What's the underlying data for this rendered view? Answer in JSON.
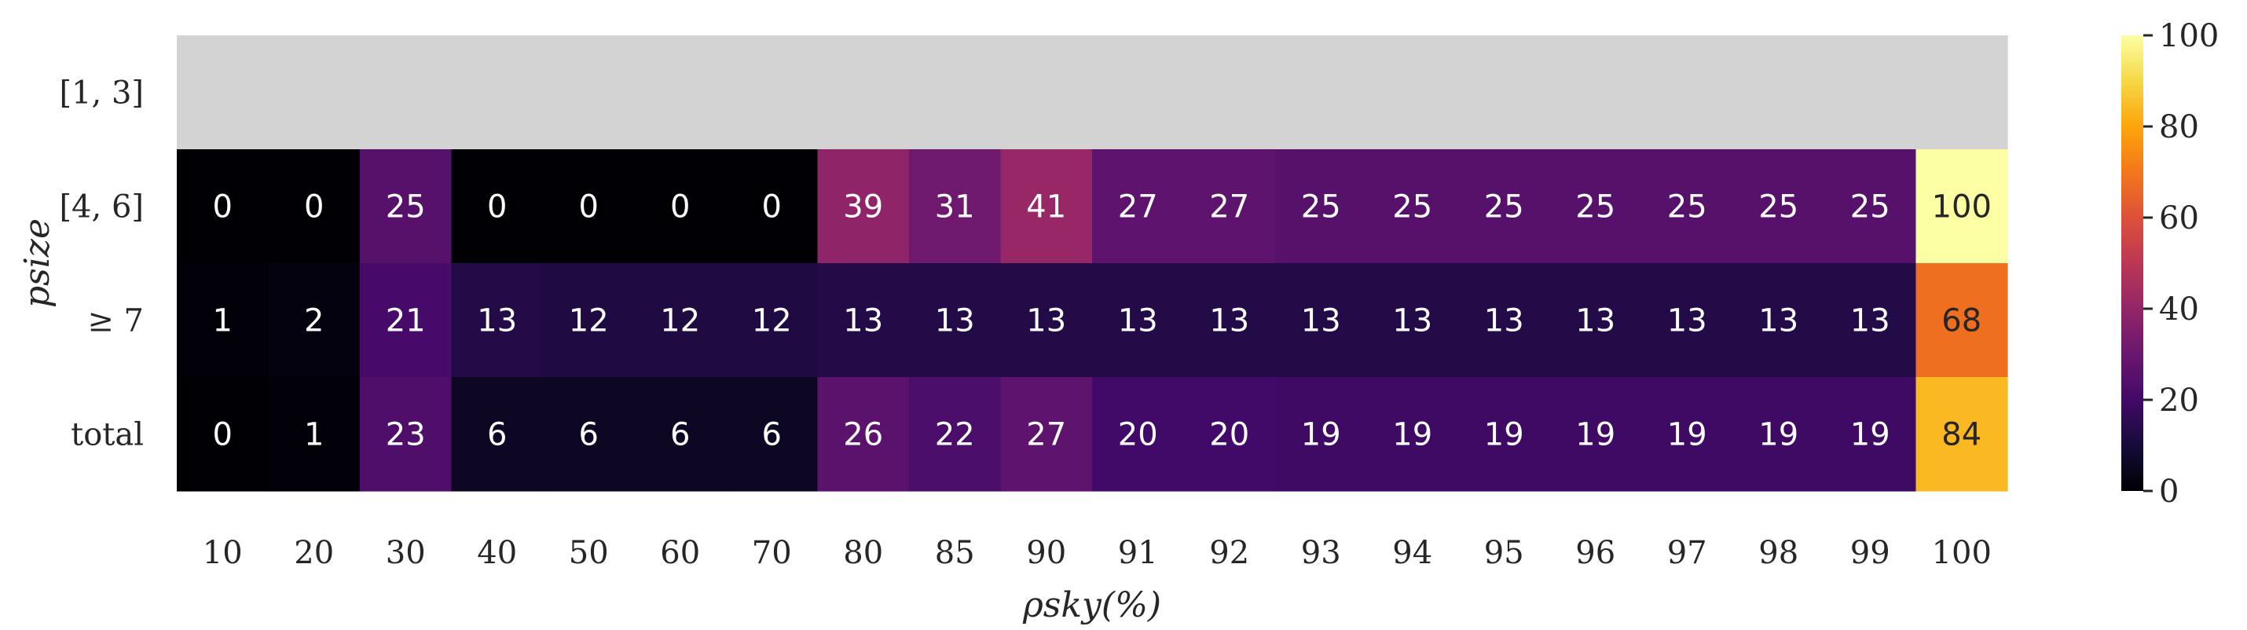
{
  "chart_data": {
    "type": "heatmap",
    "title": "",
    "xlabel": "ρsky(%)",
    "ylabel": "psize",
    "x_categories": [
      "10",
      "20",
      "30",
      "40",
      "50",
      "60",
      "70",
      "80",
      "85",
      "90",
      "91",
      "92",
      "93",
      "94",
      "95",
      "96",
      "97",
      "98",
      "99",
      "100"
    ],
    "y_categories": [
      "[1, 3]",
      "[4, 6]",
      "≥ 7",
      "total"
    ],
    "values": [
      [
        null,
        null,
        null,
        null,
        null,
        null,
        null,
        null,
        null,
        null,
        null,
        null,
        null,
        null,
        null,
        null,
        null,
        null,
        null,
        null
      ],
      [
        0,
        0,
        25,
        0,
        0,
        0,
        0,
        39,
        31,
        41,
        27,
        27,
        25,
        25,
        25,
        25,
        25,
        25,
        25,
        100
      ],
      [
        1,
        2,
        21,
        13,
        12,
        12,
        12,
        13,
        13,
        13,
        13,
        13,
        13,
        13,
        13,
        13,
        13,
        13,
        13,
        68
      ],
      [
        0,
        1,
        23,
        6,
        6,
        6,
        6,
        26,
        22,
        27,
        20,
        20,
        19,
        19,
        19,
        19,
        19,
        19,
        19,
        84
      ]
    ],
    "colormap": "inferno",
    "missing_color": "#d3d3d3",
    "vmin": 0,
    "vmax": 100,
    "colorbar": {
      "ticks": [
        0,
        20,
        40,
        60,
        80,
        100
      ],
      "placement": "right"
    },
    "grid": false,
    "legend": false
  }
}
